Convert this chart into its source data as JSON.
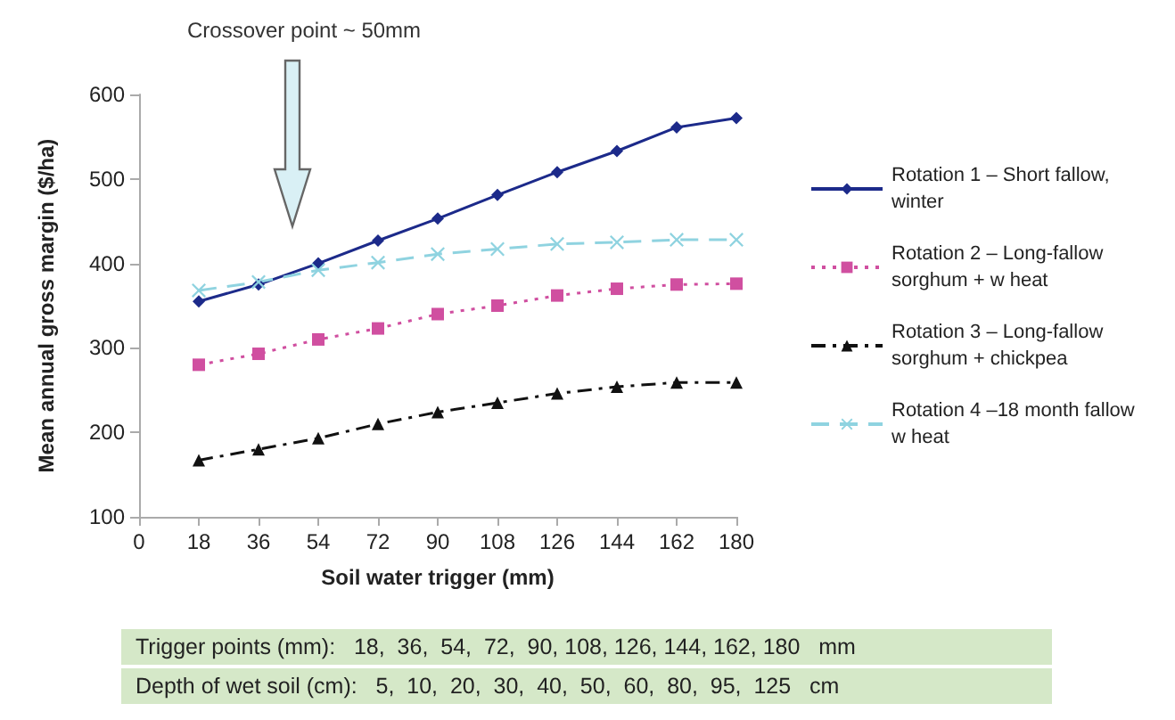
{
  "chart_data": {
    "type": "line",
    "xlabel": "Soil water trigger (mm)",
    "ylabel": "Mean annual gross margin ($/ha)",
    "x": [
      18,
      36,
      54,
      72,
      90,
      108,
      126,
      144,
      162,
      180
    ],
    "xlim": [
      0,
      180
    ],
    "xticks": [
      0,
      18,
      36,
      54,
      72,
      90,
      108,
      126,
      144,
      162,
      180
    ],
    "ylim": [
      100,
      600
    ],
    "yticks": [
      100,
      200,
      300,
      400,
      500,
      600
    ],
    "grid": false,
    "legend": "right",
    "series": [
      {
        "name": "Rotation 1 – Short fallow, winter",
        "color": "#1c2a8a",
        "marker": "diamond",
        "line_style": "solid",
        "values": [
          355,
          375,
          400,
          427,
          453,
          481,
          508,
          533,
          561,
          572
        ]
      },
      {
        "name": "Rotation 2 – Long-fallow sorghum + w heat",
        "color": "#d04fa0",
        "marker": "square",
        "line_style": "dotted",
        "values": [
          280,
          293,
          310,
          323,
          340,
          350,
          362,
          370,
          375,
          376
        ]
      },
      {
        "name": "Rotation 3 – Long-fallow sorghum + chickpea",
        "color": "#111111",
        "marker": "triangle",
        "line_style": "dashed",
        "values": [
          167,
          180,
          193,
          210,
          224,
          235,
          246,
          254,
          259,
          259
        ]
      },
      {
        "name": "Rotation 4 –18 month fallow  w heat",
        "color": "#8fd3e0",
        "marker": "cross",
        "line_style": "dashed",
        "values": [
          368,
          378,
          392,
          401,
          411,
          417,
          423,
          425,
          428,
          428
        ]
      }
    ],
    "annotations": [
      "Crossover point ~ 50mm",
      "Trigger points (mm):   18,  36,  54,  72,  90, 108, 126, 144, 162, 180   mm",
      "Depth of wet soil (cm):   5,  10,  20,  30,  40,  50,  60,  80,  95,  125   cm"
    ]
  }
}
